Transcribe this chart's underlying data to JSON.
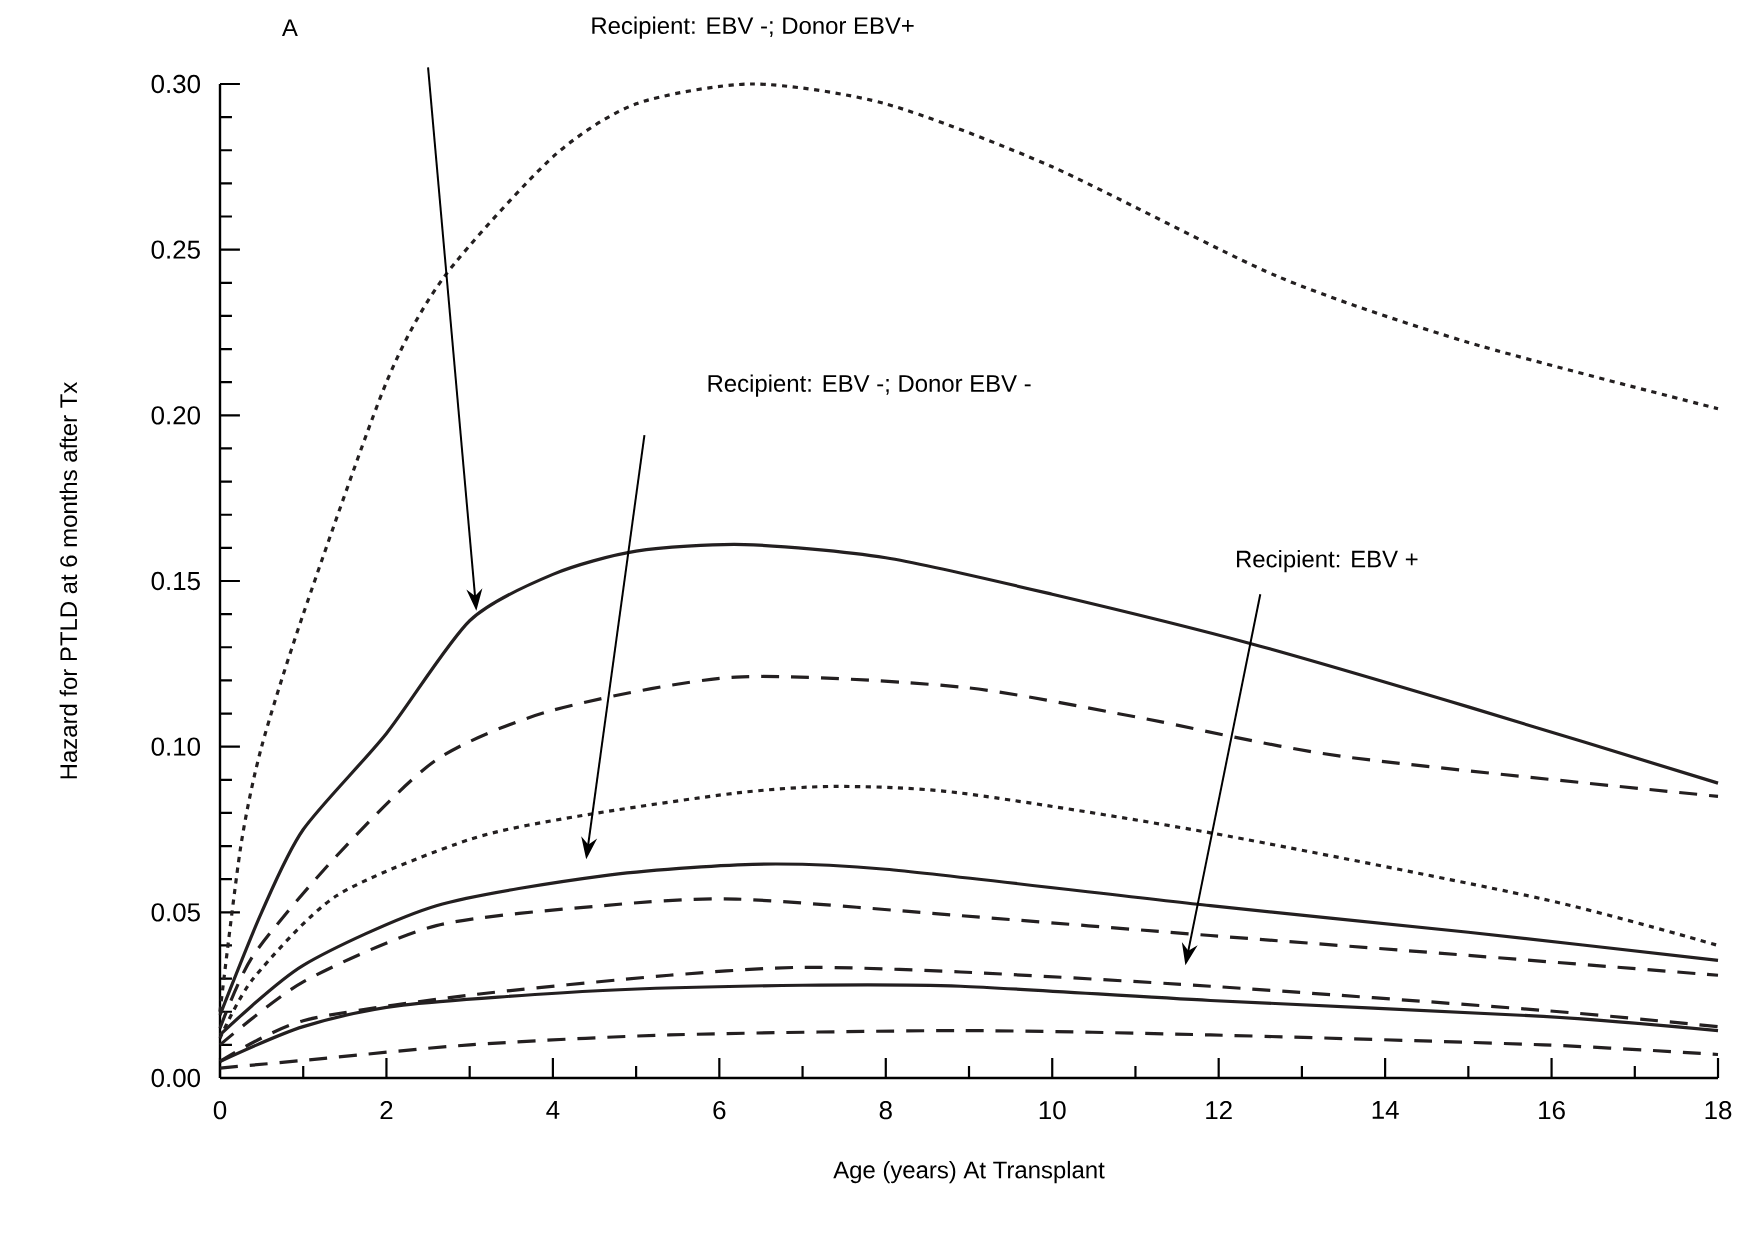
{
  "chart_data": {
    "type": "line",
    "xlabel": "Age (years) At Transplant",
    "ylabel": "Hazard for PTLD at 6 months after Tx",
    "xlim": [
      0,
      18
    ],
    "ylim": [
      0,
      0.3
    ],
    "xticks": [
      0,
      2,
      4,
      6,
      8,
      10,
      12,
      14,
      16,
      18
    ],
    "yticks": [
      {
        "value": 0,
        "label": "0.00"
      },
      {
        "value": 0.05,
        "label": "0.05"
      },
      {
        "value": 0.1,
        "label": "0.10"
      },
      {
        "value": 0.15,
        "label": "0.15"
      },
      {
        "value": 0.2,
        "label": "0.20"
      },
      {
        "value": 0.25,
        "label": "0.25"
      },
      {
        "value": 0.3,
        "label": "0.30"
      }
    ],
    "annotations": [
      "A",
      "Recipient: EBV -; Donor EBV+",
      "Recipient: EBV -; Donor EBV -",
      "Recipient: EBV +"
    ],
    "series": [
      {
        "color": "#231f20",
        "line_style": "dotted",
        "x": [
          0,
          0.25,
          0.5,
          1,
          2,
          2.7,
          4,
          5,
          6.4,
          8,
          10,
          12.7,
          15,
          18
        ],
        "values": [
          0.02,
          0.07,
          0.1,
          0.14,
          0.21,
          0.242,
          0.278,
          0.294,
          0.3,
          0.294,
          0.275,
          0.242,
          0.222,
          0.202
        ]
      },
      {
        "color": "#231f20",
        "line_style": "solid",
        "x": [
          0,
          0.5,
          1,
          2,
          3,
          4,
          5,
          6.3,
          8,
          10,
          12.4,
          15,
          18
        ],
        "values": [
          0.019,
          0.05,
          0.075,
          0.104,
          0.138,
          0.152,
          0.159,
          0.161,
          0.157,
          0.146,
          0.131,
          0.112,
          0.089
        ]
      },
      {
        "color": "#231f20",
        "line_style": "dashed",
        "x": [
          0,
          0.4,
          1.4,
          2.6,
          4,
          6.2,
          8.9,
          11,
          13.5,
          18
        ],
        "values": [
          0.015,
          0.037,
          0.067,
          0.096,
          0.111,
          0.121,
          0.118,
          0.109,
          0.097,
          0.085
        ]
      },
      {
        "color": "#231f20",
        "line_style": "dotted",
        "x": [
          0,
          0.4,
          1.4,
          3,
          4.3,
          6.2,
          7.4,
          8.9,
          11.9,
          15.9,
          18
        ],
        "values": [
          0.012,
          0.03,
          0.055,
          0.072,
          0.079,
          0.086,
          0.088,
          0.086,
          0.074,
          0.054,
          0.04
        ]
      },
      {
        "color": "#231f20",
        "line_style": "solid",
        "x": [
          0,
          1,
          2.6,
          4.6,
          6.4,
          8,
          11.9,
          15,
          18
        ],
        "values": [
          0.013,
          0.034,
          0.052,
          0.061,
          0.0645,
          0.063,
          0.052,
          0.044,
          0.0355
        ]
      },
      {
        "color": "#231f20",
        "line_style": "dashed",
        "x": [
          0,
          1,
          2.6,
          4.6,
          6.2,
          8.9,
          11.9,
          15,
          18
        ],
        "values": [
          0.01,
          0.029,
          0.046,
          0.052,
          0.054,
          0.049,
          0.043,
          0.037,
          0.031
        ]
      },
      {
        "color": "#231f20",
        "line_style": "dashed",
        "x": [
          0,
          1,
          3,
          5.4,
          7,
          8.9,
          11.9,
          15.9,
          18
        ],
        "values": [
          0.005,
          0.0173,
          0.025,
          0.031,
          0.0334,
          0.032,
          0.0277,
          0.0204,
          0.0155
        ]
      },
      {
        "color": "#231f20",
        "line_style": "solid",
        "x": [
          0,
          1,
          2.2,
          4.6,
          7,
          8.9,
          11.9,
          15.9,
          18
        ],
        "values": [
          0.005,
          0.0155,
          0.022,
          0.0264,
          0.028,
          0.0277,
          0.0234,
          0.0186,
          0.0143
        ]
      },
      {
        "color": "#231f20",
        "line_style": "dashed",
        "x": [
          0,
          1,
          3,
          5.4,
          8.9,
          11.9,
          15.9,
          18
        ],
        "values": [
          0.003,
          0.0053,
          0.01,
          0.013,
          0.0143,
          0.013,
          0.01,
          0.0071
        ]
      }
    ]
  }
}
